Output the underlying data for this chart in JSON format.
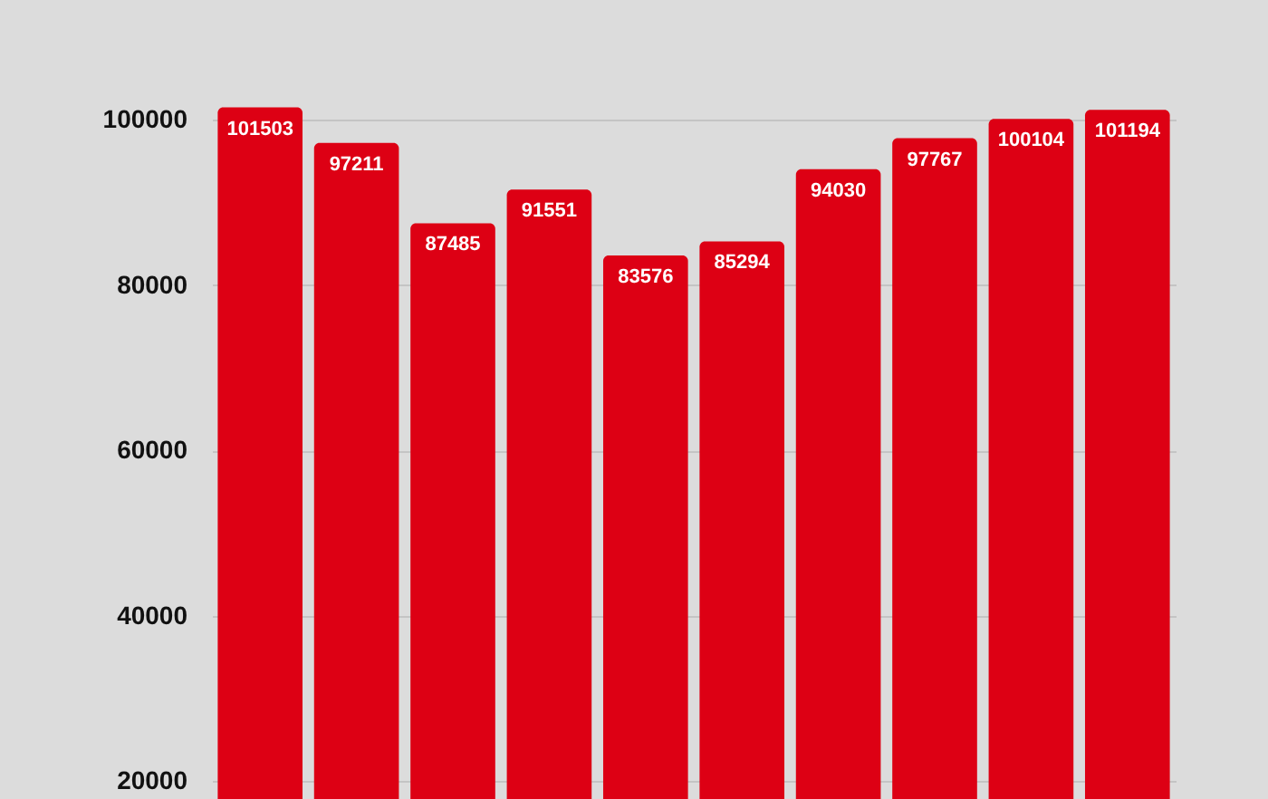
{
  "chart_data": {
    "type": "bar",
    "categories": [
      null,
      null,
      null,
      null,
      null,
      null,
      null,
      null,
      null,
      null
    ],
    "values": [
      101503,
      97211,
      87485,
      91551,
      83576,
      85294,
      94030,
      97767,
      100104,
      101194
    ],
    "color": "#dd0014",
    "ylim": [
      17800,
      114500
    ],
    "yticks": [
      20000,
      40000,
      60000,
      80000,
      100000
    ],
    "grid": "y",
    "data_labels": true
  }
}
